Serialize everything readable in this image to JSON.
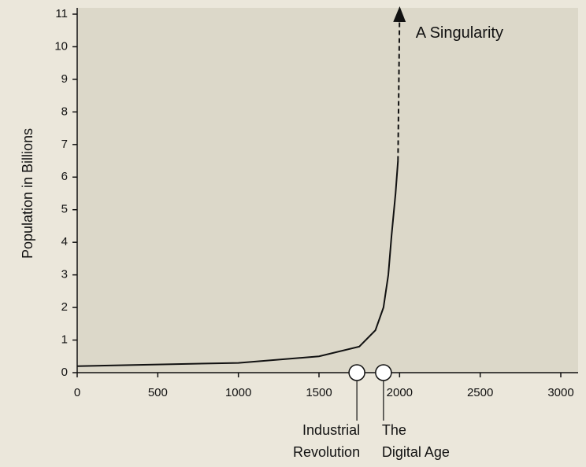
{
  "chart_data": {
    "type": "line",
    "ylabel": "Population in Billions",
    "xlim": [
      0,
      3000
    ],
    "xticks": [
      0,
      500,
      1000,
      1500,
      2000,
      2500,
      3000
    ],
    "ylim": [
      0,
      11
    ],
    "yticks": [
      0,
      1,
      2,
      3,
      4,
      5,
      6,
      7,
      8,
      9,
      10,
      11
    ],
    "series": [
      {
        "color": "#111111",
        "style": "solid",
        "x": [
          0,
          500,
          1000,
          1500,
          1750,
          1850,
          1900,
          1930,
          1950,
          1975,
          1990
        ],
        "values": [
          0.2,
          0.25,
          0.3,
          0.5,
          0.8,
          1.3,
          2,
          3,
          4.2,
          5.5,
          6.5
        ]
      },
      {
        "color": "#111111",
        "style": "dashed",
        "x": [
          1990,
          2000
        ],
        "values": [
          6.5,
          11
        ]
      }
    ],
    "annotations": [
      {
        "text": "A Singularity",
        "x": 2100,
        "y": 10.4
      }
    ],
    "markers": [
      {
        "x": 1735,
        "label": [
          "Industrial",
          "Revolution"
        ]
      },
      {
        "x": 1900,
        "label": [
          "The",
          "Digital Age"
        ]
      }
    ]
  }
}
